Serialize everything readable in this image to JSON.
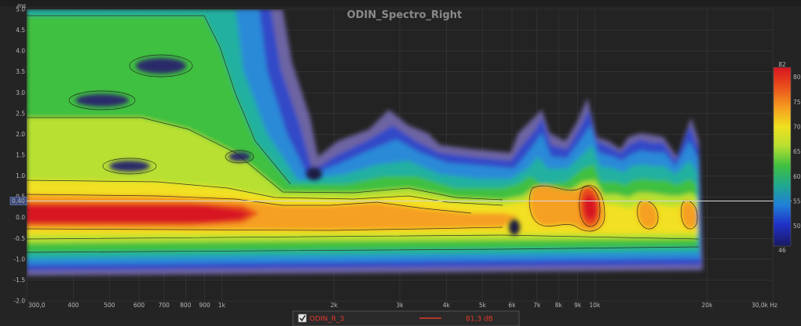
{
  "chart_data": {
    "type": "heatmap",
    "title": "ODIN_Spectro_Right",
    "x_scale": "log",
    "xlim": [
      300,
      30000
    ],
    "x_ticks": [
      {
        "value": 300,
        "label": "300,0"
      },
      {
        "value": 400,
        "label": "400"
      },
      {
        "value": 500,
        "label": "500"
      },
      {
        "value": 600,
        "label": "600"
      },
      {
        "value": 700,
        "label": "700"
      },
      {
        "value": 800,
        "label": "800"
      },
      {
        "value": 900,
        "label": "900"
      },
      {
        "value": 1000,
        "label": "1k"
      },
      {
        "value": 2000,
        "label": "2k"
      },
      {
        "value": 3000,
        "label": "3k"
      },
      {
        "value": 4000,
        "label": "4k"
      },
      {
        "value": 5000,
        "label": "5k"
      },
      {
        "value": 6000,
        "label": "6k"
      },
      {
        "value": 7000,
        "label": "7k"
      },
      {
        "value": 8000,
        "label": "8k"
      },
      {
        "value": 9000,
        "label": "9k"
      },
      {
        "value": 10000,
        "label": "10k"
      },
      {
        "value": 20000,
        "label": "20k"
      },
      {
        "value": 30000,
        "label": "30,0k Hz"
      }
    ],
    "ylabel": "ms",
    "ylim": [
      -2.0,
      5.0
    ],
    "y_ticks": [
      {
        "value": 5.0,
        "label": "5.0"
      },
      {
        "value": 4.5,
        "label": "4.5"
      },
      {
        "value": 4.0,
        "label": "4.0"
      },
      {
        "value": 3.5,
        "label": "3.5"
      },
      {
        "value": 3.0,
        "label": "3.0"
      },
      {
        "value": 2.5,
        "label": "2.5"
      },
      {
        "value": 2.0,
        "label": "2.0"
      },
      {
        "value": 1.5,
        "label": "1.5"
      },
      {
        "value": 1.0,
        "label": "1.0"
      },
      {
        "value": 0.5,
        "label": "0.5"
      },
      {
        "value": 0.0,
        "label": "0.0"
      },
      {
        "value": -0.5,
        "label": "-0.5"
      },
      {
        "value": -1.0,
        "label": "-1.0"
      },
      {
        "value": -1.5,
        "label": "-1.5"
      },
      {
        "value": -2.0,
        "label": "-2.0"
      }
    ],
    "cursor_y": 0.4,
    "cursor_label": "0,40",
    "colorbar": {
      "min": 46,
      "max": 82,
      "ticks": [
        {
          "value": 82,
          "label": "82"
        },
        {
          "value": 80,
          "label": "80"
        },
        {
          "value": 75,
          "label": "75"
        },
        {
          "value": 70,
          "label": "70"
        },
        {
          "value": 65,
          "label": "65"
        },
        {
          "value": 60,
          "label": "60"
        },
        {
          "value": 55,
          "label": "55"
        },
        {
          "value": 50,
          "label": "50"
        },
        {
          "value": 46,
          "label": "46"
        }
      ],
      "colors": [
        "#d81420",
        "#e84a1c",
        "#f59a20",
        "#f0e020",
        "#b8e030",
        "#40c040",
        "#20a890",
        "#2080d8",
        "#2030c8",
        "#1a1a60"
      ]
    },
    "legend": [
      {
        "name": "ODIN_R_3",
        "value": "81,3 dB",
        "color": "#e03a2a",
        "checked": true
      }
    ]
  }
}
